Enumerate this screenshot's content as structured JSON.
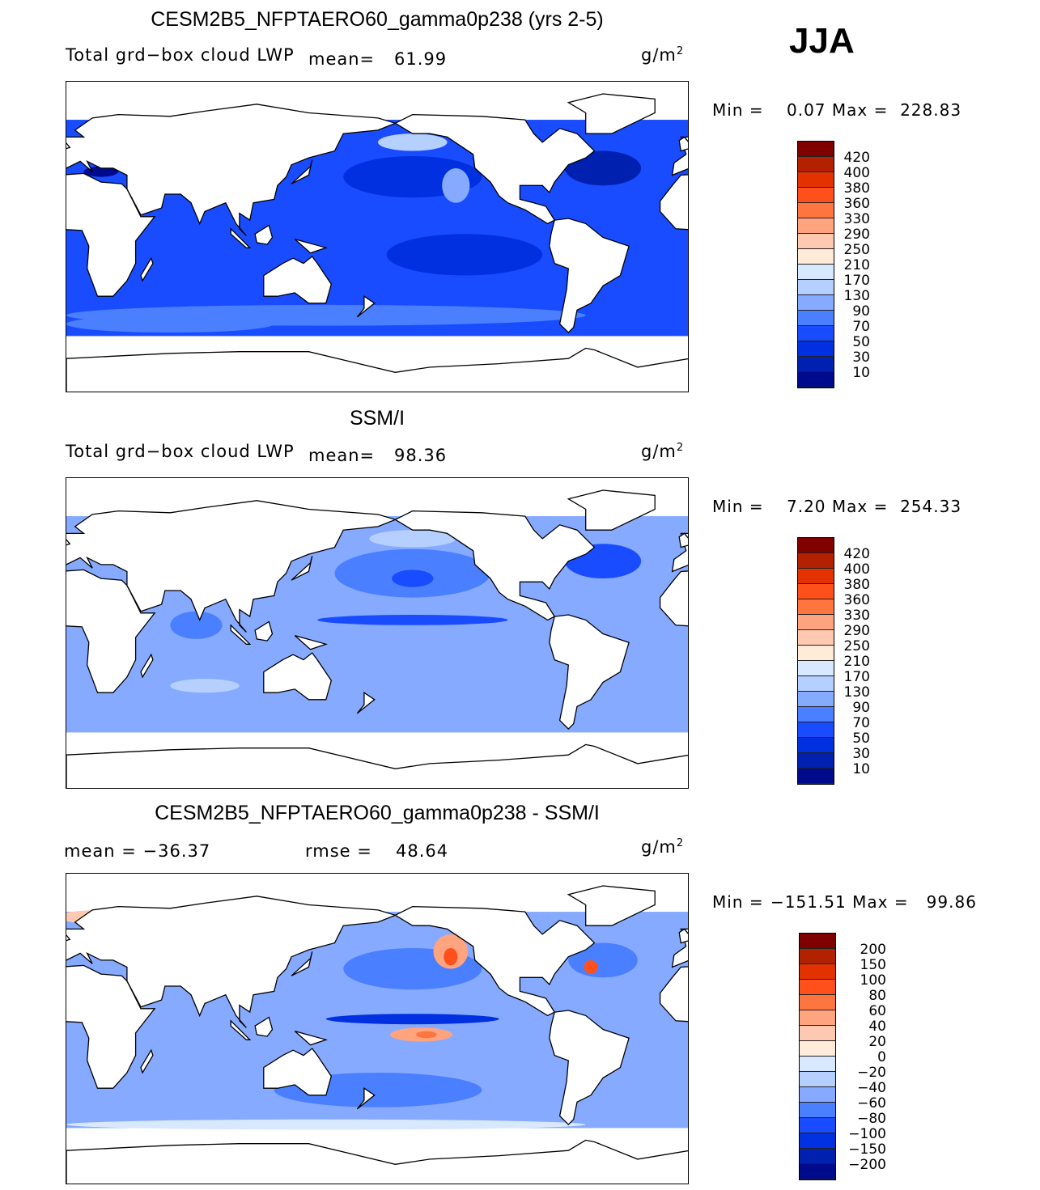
{
  "season": "JJA",
  "colorbar_colors": [
    "#800000",
    "#b22200",
    "#e33200",
    "#ff4f1a",
    "#ff7540",
    "#ffa47f",
    "#ffc8b0",
    "#ffebd8",
    "#d8e8ff",
    "#b5cfff",
    "#86aaff",
    "#4a7fff",
    "#1a4cff",
    "#0030e0",
    "#0020b0",
    "#000a8c"
  ],
  "panels": [
    {
      "title": "CESM2B5_NFPTAERO60_gamma0p238 (yrs 2-5)",
      "left_label": "Total grd−box cloud LWP",
      "mean_label": "mean=",
      "mean": "61.99",
      "units": "g/m",
      "units_sup": "2",
      "min_label": "Min =",
      "min": "0.07",
      "max_label": "Max =",
      "max": "228.83",
      "levels": [
        "420",
        "400",
        "380",
        "360",
        "330",
        "290",
        "250",
        "210",
        "170",
        "130",
        "90",
        "70",
        "50",
        "30",
        "10"
      ]
    },
    {
      "title": "SSM/I",
      "left_label": "Total grd−box cloud LWP",
      "mean_label": "mean=",
      "mean": "98.36",
      "units": "g/m",
      "units_sup": "2",
      "min_label": "Min =",
      "min": "7.20",
      "max_label": "Max =",
      "max": "254.33",
      "levels": [
        "420",
        "400",
        "380",
        "360",
        "330",
        "290",
        "250",
        "210",
        "170",
        "130",
        "90",
        "70",
        "50",
        "30",
        "10"
      ]
    },
    {
      "title": "CESM2B5_NFPTAERO60_gamma0p238 - SSM/I",
      "left_label": "mean  =  −36.37",
      "mean_label": "rmse  =",
      "mean": "48.64",
      "units": "g/m",
      "units_sup": "2",
      "min_label": "Min =",
      "min": "−151.51",
      "max_label": "Max =",
      "max": "99.86",
      "levels": [
        "200",
        "150",
        "100",
        "80",
        "60",
        "40",
        "20",
        "0",
        "−20",
        "−40",
        "−60",
        "−80",
        "−100",
        "−150",
        "−200"
      ]
    }
  ]
}
